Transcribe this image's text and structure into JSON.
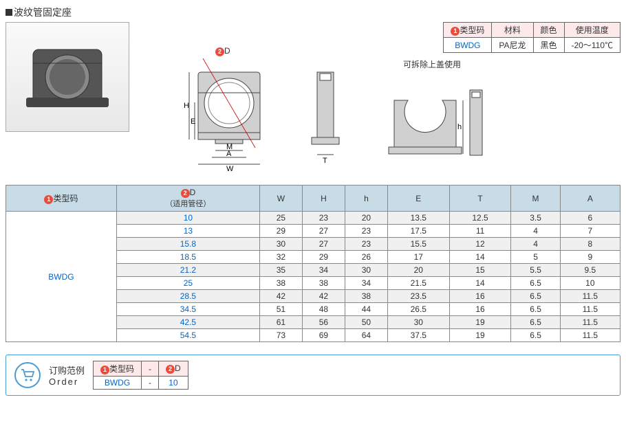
{
  "title": "波纹管固定座",
  "spec_table": {
    "headers": [
      "类型码",
      "材料",
      "颜色",
      "使用温度"
    ],
    "circle_num": "1",
    "row": {
      "code": "BWDG",
      "material": "PA尼龙",
      "color": "黑色",
      "temp": "-20～110℃"
    }
  },
  "diagram": {
    "d_label": "D",
    "d_circle": "2",
    "dims_front": {
      "H": "H",
      "E": "E",
      "M": "M",
      "A": "A",
      "W": "W"
    },
    "dims_side": {
      "T": "T"
    },
    "dims_open": {
      "h": "h"
    },
    "note": "可拆除上盖使用"
  },
  "data_table": {
    "headers": {
      "type_circle": "1",
      "type_label": "类型码",
      "d_circle": "2",
      "d_label": "D",
      "d_sub": "（适用管径）",
      "cols": [
        "W",
        "H",
        "h",
        "E",
        "T",
        "M",
        "A"
      ]
    },
    "type_code": "BWDG",
    "rows": [
      {
        "d": "10",
        "v": [
          "25",
          "23",
          "20",
          "13.5",
          "12.5",
          "3.5",
          "6"
        ]
      },
      {
        "d": "13",
        "v": [
          "29",
          "27",
          "23",
          "17.5",
          "11",
          "4",
          "7"
        ]
      },
      {
        "d": "15.8",
        "v": [
          "30",
          "27",
          "23",
          "15.5",
          "12",
          "4",
          "8"
        ]
      },
      {
        "d": "18.5",
        "v": [
          "32",
          "29",
          "26",
          "17",
          "14",
          "5",
          "9"
        ]
      },
      {
        "d": "21.2",
        "v": [
          "35",
          "34",
          "30",
          "20",
          "15",
          "5.5",
          "9.5"
        ]
      },
      {
        "d": "25",
        "v": [
          "38",
          "38",
          "34",
          "21.5",
          "14",
          "6.5",
          "10"
        ]
      },
      {
        "d": "28.5",
        "v": [
          "42",
          "42",
          "38",
          "23.5",
          "16",
          "6.5",
          "11.5"
        ]
      },
      {
        "d": "34.5",
        "v": [
          "51",
          "48",
          "44",
          "26.5",
          "16",
          "6.5",
          "11.5"
        ]
      },
      {
        "d": "42.5",
        "v": [
          "61",
          "56",
          "50",
          "30",
          "19",
          "6.5",
          "11.5"
        ]
      },
      {
        "d": "54.5",
        "v": [
          "73",
          "69",
          "64",
          "37.5",
          "19",
          "6.5",
          "11.5"
        ]
      }
    ]
  },
  "order": {
    "label_cn": "订购范例",
    "label_en": "Order",
    "headers": {
      "type_circle": "1",
      "type_label": "类型码",
      "d_circle": "2",
      "d_label": "D"
    },
    "sep": "-",
    "example": {
      "code": "BWDG",
      "d": "10"
    }
  },
  "colors": {
    "header_blue": "#c8dce8",
    "border_blue": "#4a9bd4",
    "link_blue": "#0066cc",
    "red": "#e74c3c",
    "pink_header": "#fde9e9"
  }
}
